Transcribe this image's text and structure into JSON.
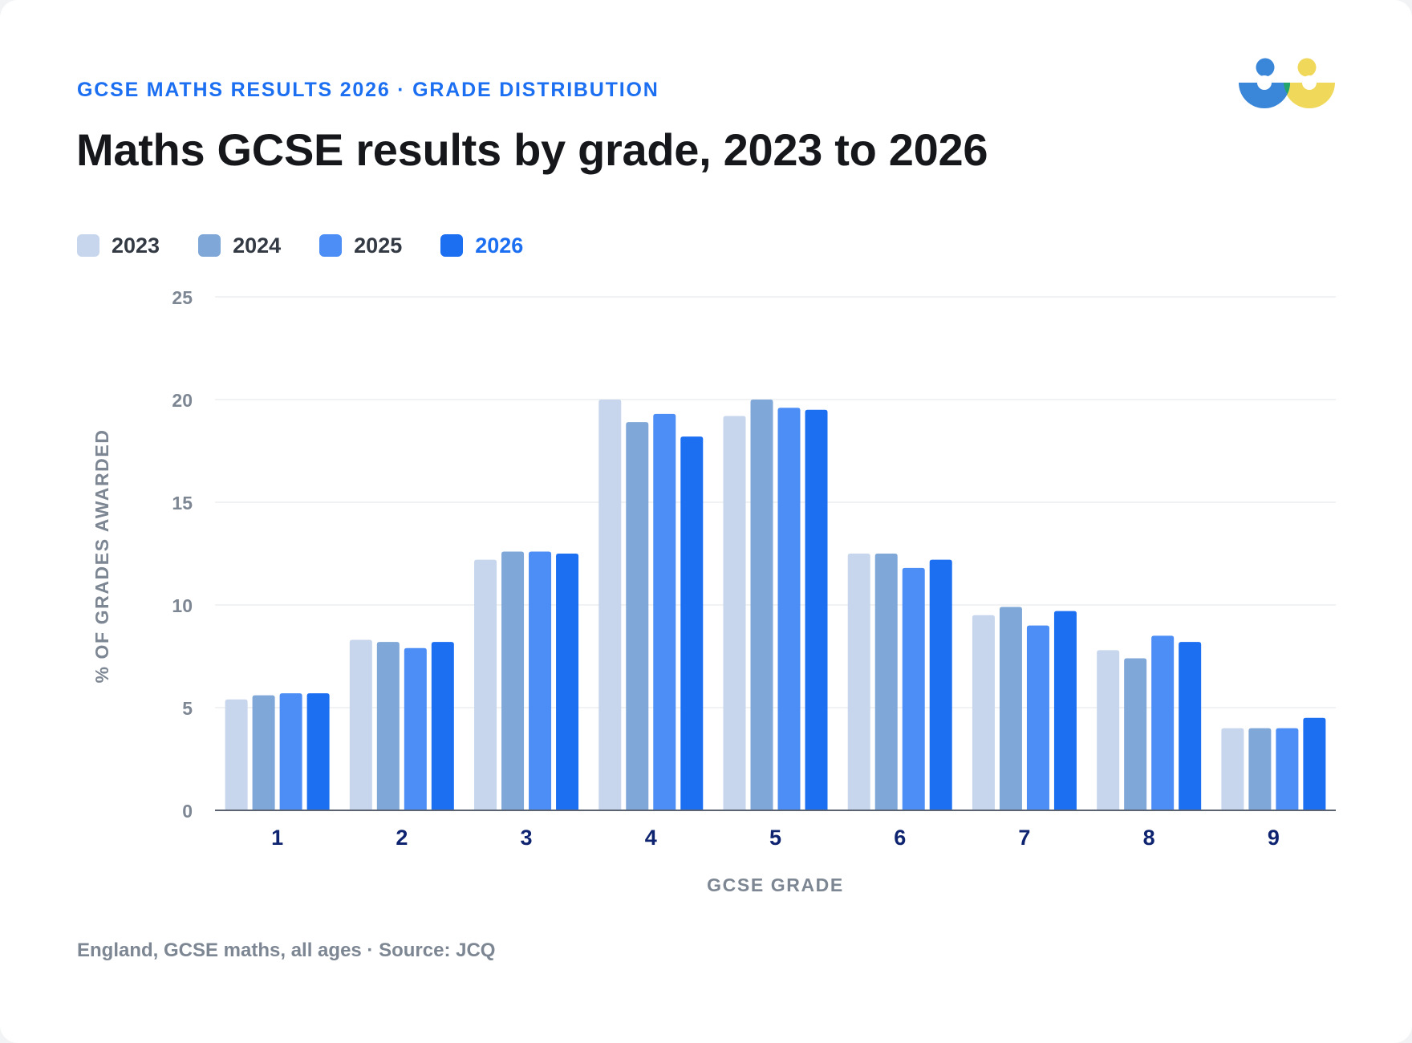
{
  "header": {
    "eyebrow": "GCSE MATHS RESULTS 2026 · GRADE DISTRIBUTION",
    "title": "Maths GCSE results by grade, 2023 to 2026"
  },
  "footnote": "England, GCSE maths, all ages · Source: JCQ",
  "logo": {
    "icon": "people-logo-icon",
    "colors": [
      "#3a86d9",
      "#23a56b",
      "#f0d85a"
    ]
  },
  "legend": [
    {
      "label": "2023",
      "color": "#c7d6ec",
      "active": false
    },
    {
      "label": "2024",
      "color": "#7fa7d8",
      "active": false
    },
    {
      "label": "2025",
      "color": "#4c8ef6",
      "active": false
    },
    {
      "label": "2026",
      "color": "#1d6ff2",
      "active": true
    }
  ],
  "chart_data": {
    "type": "bar",
    "title": "Maths GCSE results by grade, 2023 to 2026",
    "xlabel": "GCSE GRADE",
    "ylabel": "% OF GRADES AWARDED",
    "ylim": [
      0,
      25
    ],
    "yticks": [
      0,
      5,
      10,
      15,
      20,
      25
    ],
    "grid": true,
    "legend_position": "top-left",
    "categories": [
      "1",
      "2",
      "3",
      "4",
      "5",
      "6",
      "7",
      "8",
      "9"
    ],
    "series": [
      {
        "name": "2023",
        "color": "#c7d6ec",
        "values": [
          5.4,
          8.3,
          12.2,
          20.0,
          19.2,
          12.5,
          9.5,
          7.8,
          4.0
        ]
      },
      {
        "name": "2024",
        "color": "#7fa7d8",
        "values": [
          5.6,
          8.2,
          12.6,
          18.9,
          20.0,
          12.5,
          9.9,
          7.4,
          4.0
        ]
      },
      {
        "name": "2025",
        "color": "#4c8ef6",
        "values": [
          5.7,
          7.9,
          12.6,
          19.3,
          19.6,
          11.8,
          9.0,
          8.5,
          4.0
        ]
      },
      {
        "name": "2026",
        "color": "#1d6ff2",
        "values": [
          5.7,
          8.2,
          12.5,
          18.2,
          19.5,
          12.2,
          9.7,
          8.2,
          4.5
        ]
      }
    ]
  }
}
